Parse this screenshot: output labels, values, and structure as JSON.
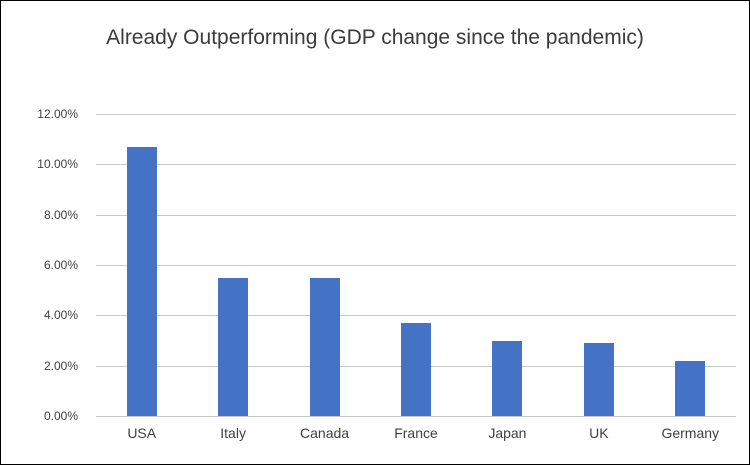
{
  "chart_data": {
    "type": "bar",
    "title": "Already Outperforming (GDP change since the pandemic)",
    "categories": [
      "USA",
      "Italy",
      "Canada",
      "France",
      "Japan",
      "UK",
      "Germany"
    ],
    "values": [
      10.7,
      5.5,
      5.5,
      3.7,
      3.0,
      2.9,
      2.2
    ],
    "xlabel": "",
    "ylabel": "",
    "ylim": [
      0,
      12
    ],
    "ytick_step": 2,
    "ytick_labels": [
      "12.00%",
      "10.00%",
      "8.00%",
      "6.00%",
      "4.00%",
      "2.00%",
      "0.00%"
    ],
    "grid": true,
    "legend": false,
    "colors": {
      "bar": "#4472C4",
      "gridline": "#c9c9c9",
      "text": "#404040",
      "background": "#ffffff",
      "border": "#000000"
    }
  }
}
